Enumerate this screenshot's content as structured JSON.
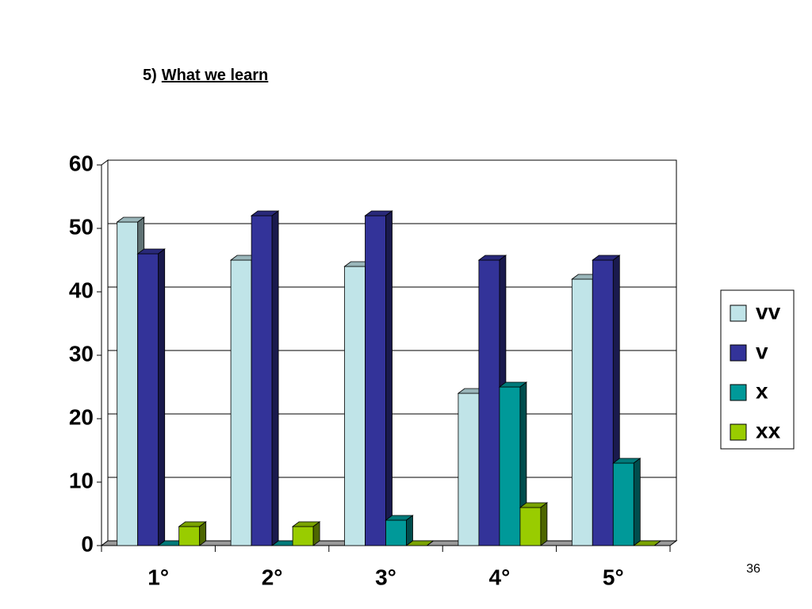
{
  "slide_number": "36",
  "chart_data": {
    "type": "bar3d",
    "title_number": "5)",
    "title": "What we learn",
    "categories": [
      "1°",
      "2°",
      "3°",
      "4°",
      "5°"
    ],
    "series": [
      {
        "name": "vv",
        "color": "#c0e4e8",
        "values": [
          51,
          45,
          44,
          24,
          42
        ]
      },
      {
        "name": "v",
        "color": "#333399",
        "values": [
          46,
          52,
          52,
          45,
          45
        ]
      },
      {
        "name": "x",
        "color": "#009999",
        "values": [
          0,
          0,
          4,
          25,
          13
        ]
      },
      {
        "name": "xx",
        "color": "#99cc00",
        "values": [
          3,
          3,
          0,
          6,
          0
        ]
      }
    ],
    "ylim": [
      0,
      60
    ],
    "yticks": [
      0,
      10,
      20,
      30,
      40,
      50,
      60
    ],
    "grid": true,
    "legend": "right"
  }
}
